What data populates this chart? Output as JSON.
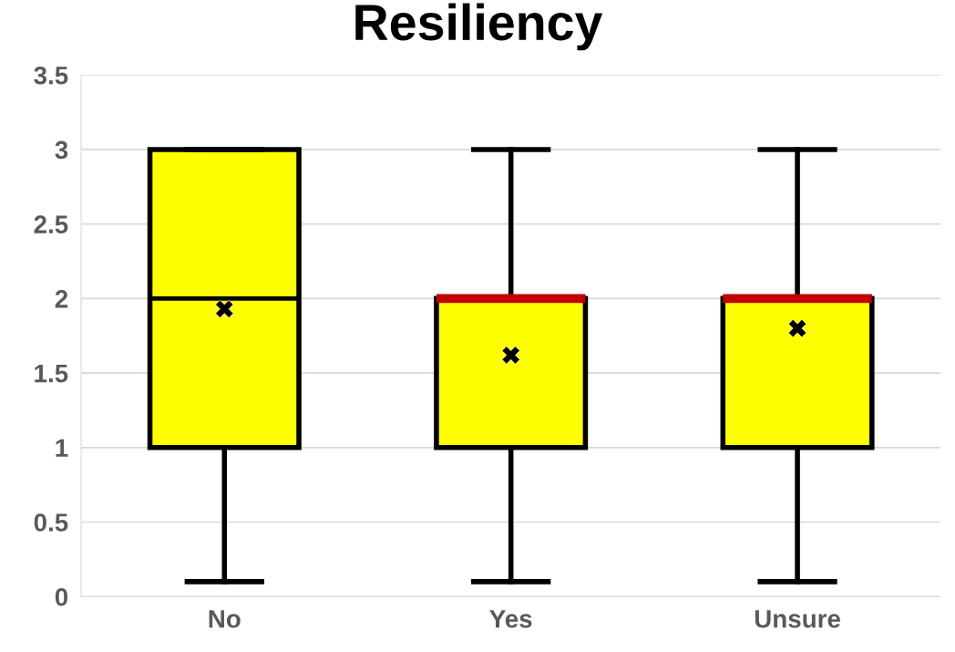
{
  "chart_data": {
    "type": "box",
    "title": "Resiliency",
    "categories": [
      "No",
      "Yes",
      "Unsure"
    ],
    "boxes": [
      {
        "low": 0.1,
        "q1": 1,
        "median": 2,
        "q3": 3,
        "high": 3,
        "mean": 1.93
      },
      {
        "low": 0.1,
        "q1": 1,
        "median": 2,
        "q3": 2,
        "high": 3,
        "mean": 1.62
      },
      {
        "low": 0.1,
        "q1": 1,
        "median": 2,
        "q3": 2,
        "high": 3,
        "mean": 1.8
      }
    ],
    "color": "#ffff00",
    "ylim": [
      0,
      3.5
    ],
    "yticks": [
      0,
      0.5,
      1,
      1.5,
      2,
      2.5,
      3,
      3.5
    ],
    "grid": "y",
    "marker": "cross"
  }
}
